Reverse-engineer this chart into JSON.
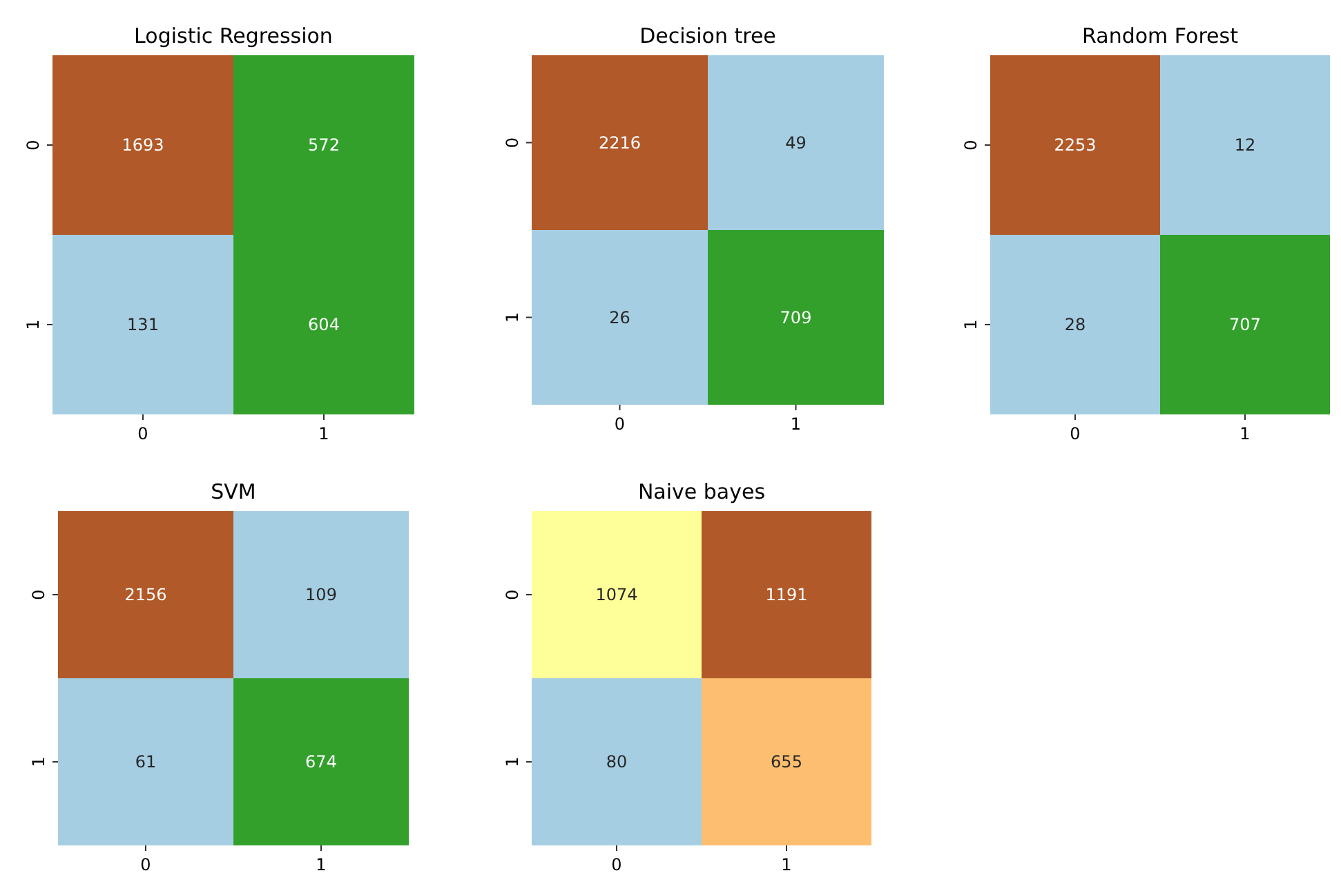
{
  "chart_data": [
    {
      "type": "heatmap",
      "title": "Logistic Regression",
      "categories": [
        "0",
        "1"
      ],
      "y_categories": [
        "0",
        "1"
      ],
      "cells": [
        [
          1693,
          572
        ],
        [
          131,
          604
        ]
      ],
      "colors": [
        [
          "#b15928",
          "#33a02c"
        ],
        [
          "#a6cee3",
          "#33a02c"
        ]
      ],
      "data_labels": true
    },
    {
      "type": "heatmap",
      "title": "Decision tree",
      "categories": [
        "0",
        "1"
      ],
      "y_categories": [
        "0",
        "1"
      ],
      "cells": [
        [
          2216,
          49
        ],
        [
          26,
          709
        ]
      ],
      "colors": [
        [
          "#b15928",
          "#a6cee3"
        ],
        [
          "#a6cee3",
          "#33a02c"
        ]
      ],
      "data_labels": true
    },
    {
      "type": "heatmap",
      "title": "Random Forest",
      "categories": [
        "0",
        "1"
      ],
      "y_categories": [
        "0",
        "1"
      ],
      "cells": [
        [
          2253,
          12
        ],
        [
          28,
          707
        ]
      ],
      "colors": [
        [
          "#b15928",
          "#a6cee3"
        ],
        [
          "#a6cee3",
          "#33a02c"
        ]
      ],
      "data_labels": true
    },
    {
      "type": "heatmap",
      "title": "SVM",
      "categories": [
        "0",
        "1"
      ],
      "y_categories": [
        "0",
        "1"
      ],
      "cells": [
        [
          2156,
          109
        ],
        [
          61,
          674
        ]
      ],
      "colors": [
        [
          "#b15928",
          "#a6cee3"
        ],
        [
          "#a6cee3",
          "#33a02c"
        ]
      ],
      "data_labels": true
    },
    {
      "type": "heatmap",
      "title": "Naive bayes",
      "categories": [
        "0",
        "1"
      ],
      "y_categories": [
        "0",
        "1"
      ],
      "cells": [
        [
          1074,
          1191
        ],
        [
          80,
          655
        ]
      ],
      "colors": [
        [
          "#ffff99",
          "#b15928"
        ],
        [
          "#a6cee3",
          "#fdbf6f"
        ]
      ],
      "data_labels": true
    }
  ]
}
